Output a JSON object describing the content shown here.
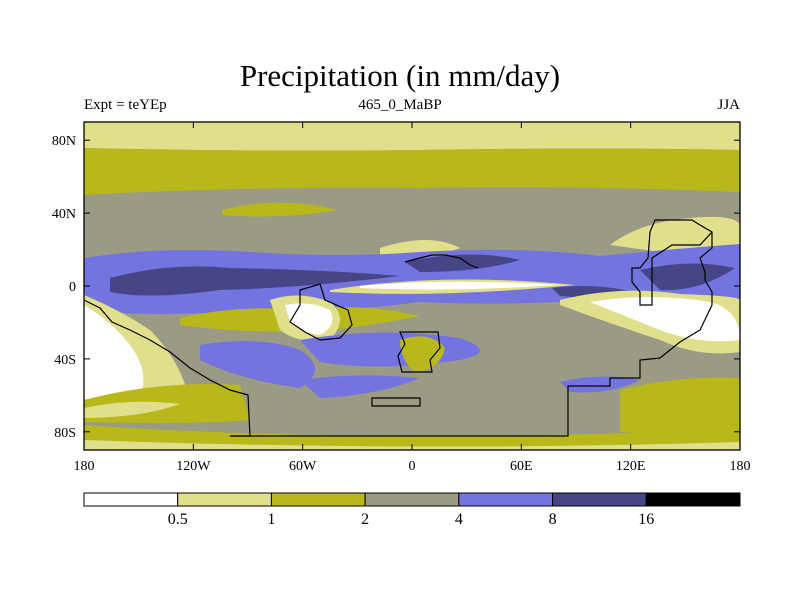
{
  "title": "Precipitation (in mm/day)",
  "subtitle_left": "Expt = teYEp",
  "subtitle_center": "465_0_MaBP",
  "subtitle_right": "JJA",
  "y_ticks": [
    {
      "label": "80N",
      "lat": 80
    },
    {
      "label": "40N",
      "lat": 40
    },
    {
      "label": "0",
      "lat": 0
    },
    {
      "label": "40S",
      "lat": -40
    },
    {
      "label": "80S",
      "lat": -80
    }
  ],
  "x_ticks": [
    {
      "label": "180",
      "lon": -180
    },
    {
      "label": "120W",
      "lon": -120
    },
    {
      "label": "60W",
      "lon": -60
    },
    {
      "label": "0",
      "lon": 0
    },
    {
      "label": "60E",
      "lon": 60
    },
    {
      "label": "120E",
      "lon": 120
    },
    {
      "label": "180",
      "lon": 180
    }
  ],
  "colorbar": {
    "colors": [
      "#ffffff",
      "#e0df8c",
      "#b8b81a",
      "#9a9a85",
      "#7474e0",
      "#464687",
      "#000000"
    ],
    "labels": [
      "0.5",
      "1",
      "2",
      "4",
      "8",
      "16"
    ]
  }
}
